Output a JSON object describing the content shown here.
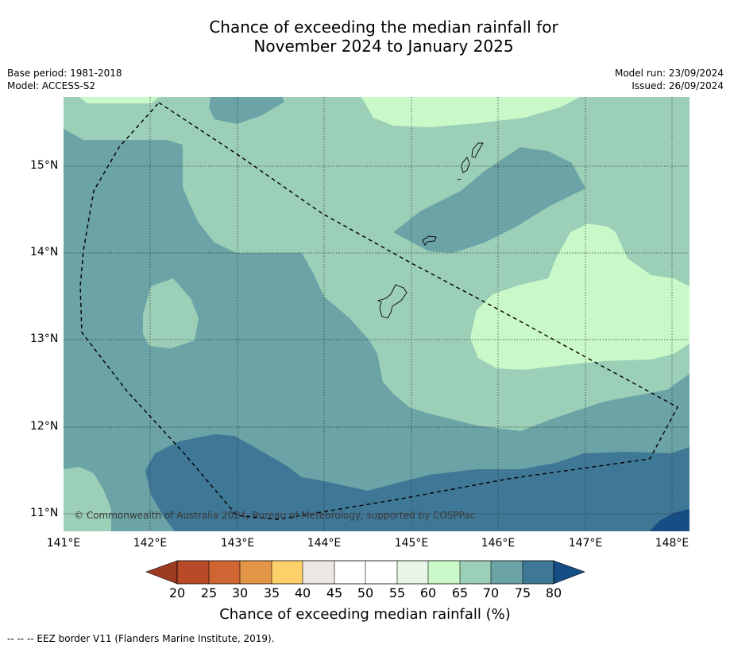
{
  "title_line1": "Chance of exceeding the median rainfall for",
  "title_line2": "November 2024 to January 2025",
  "base_period": "Base period: 1981-2018",
  "model": "Model: ACCESS-S2",
  "model_run": "Model run: 23/09/2024",
  "issued": "Issued: 26/09/2024",
  "copyright": "© Commonwealth of Australia 2024, Bureau of Meteorology, supported by COSPPac",
  "lat_labels": [
    "15°N",
    "14°N",
    "13°N",
    "12°N",
    "11°N"
  ],
  "lon_labels": [
    "141°E",
    "142°E",
    "143°E",
    "144°E",
    "145°E",
    "146°E",
    "147°E",
    "148°E"
  ],
  "colorbar": {
    "ticks": [
      "20",
      "25",
      "30",
      "35",
      "40",
      "45",
      "50",
      "55",
      "60",
      "65",
      "70",
      "75",
      "80"
    ],
    "title": "Chance of exceeding median rainfall (%)",
    "colors": [
      "#9c3a22",
      "#b84a28",
      "#d06534",
      "#e39648",
      "#fdd06a",
      "#ede8e3",
      "#ffffff",
      "#ffffff",
      "#e8f6e8",
      "#caf9c9",
      "#9ccfb7",
      "#6ba3a6",
      "#3f7797",
      "#154d85"
    ]
  },
  "legend_footer": "-- -- -- EEZ border V11 (Flanders Marine Institute, 2019).",
  "colors": {
    "class_75_80": "#3f7797",
    "class_70_75": "#6ba3a6",
    "class_65_70": "#9ccfb7",
    "class_60_65": "#caf9c9",
    "class_80_plus": "#154d85"
  }
}
